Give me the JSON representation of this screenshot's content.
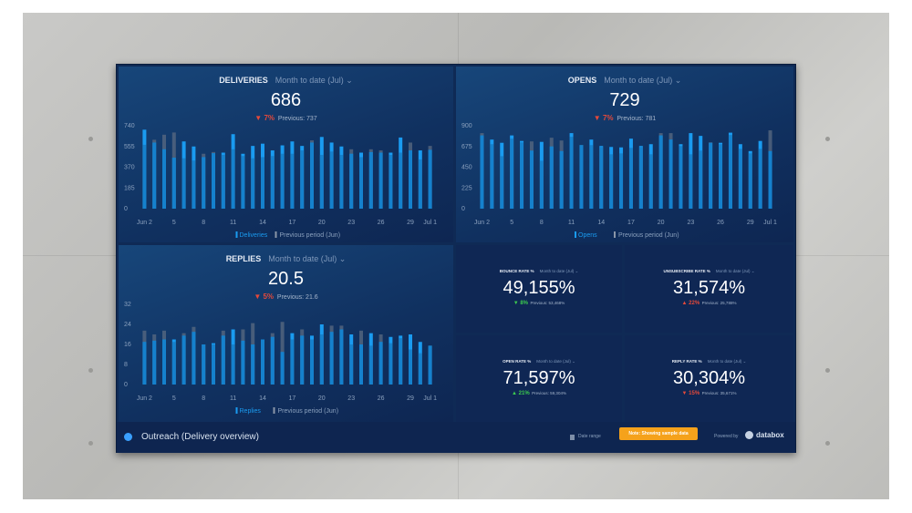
{
  "colors": {
    "current": "#1a9bf0",
    "previous": "#5b6b82",
    "down_bad": "#e5493a",
    "up_good": "#3ccb4f"
  },
  "x_labels": [
    "Jun 2",
    "5",
    "8",
    "11",
    "14",
    "17",
    "20",
    "23",
    "26",
    "29",
    "Jul 1"
  ],
  "panels": {
    "deliveries": {
      "title": "DELIVERIES",
      "range": "Month to date (Jul)",
      "value": "686",
      "delta_icon": "triangle-down",
      "delta": "7%",
      "previous": "Previous: 737",
      "legend_current": "Deliveries",
      "legend_previous": "Previous period (Jun)"
    },
    "opens": {
      "title": "OPENS",
      "range": "Month to date (Jul)",
      "value": "729",
      "delta_icon": "triangle-down",
      "delta": "7%",
      "previous": "Previous: 781",
      "legend_current": "Opens",
      "legend_previous": "Previous period (Jun)"
    },
    "replies": {
      "title": "REPLIES",
      "range": "Month to date (Jul)",
      "value": "20.5",
      "delta_icon": "triangle-down",
      "delta": "5%",
      "previous": "Previous: 21.6",
      "legend_current": "Replies",
      "legend_previous": "Previous period (Jun)"
    }
  },
  "tiles": {
    "bounce": {
      "title": "BOUNCE RATE %",
      "range": "Month to date (Jul)",
      "value": "49,155%",
      "delta_icon": "triangle-down",
      "delta": "8%",
      "previous": "Previous: 53,468%",
      "delta_color": "green"
    },
    "unsubscribe": {
      "title": "UNSUBSCRIBE RATE %",
      "range": "Month to date (Jul)",
      "value": "31,574%",
      "delta_icon": "triangle-up",
      "delta": "22%",
      "previous": "Previous: 25,788%",
      "delta_color": "red"
    },
    "open": {
      "title": "OPEN RATE %",
      "range": "Month to date (Jul)",
      "value": "71,597%",
      "delta_icon": "triangle-up",
      "delta": "21%",
      "previous": "Previous: 59,304%",
      "delta_color": "green"
    },
    "reply": {
      "title": "REPLY RATE %",
      "range": "Month to date (Jul)",
      "value": "30,304%",
      "delta_icon": "triangle-down",
      "delta": "15%",
      "previous": "Previous: 35,671%",
      "delta_color": "red"
    }
  },
  "footer": {
    "dashboard_name": "Outreach (Delivery overview)",
    "date_range": "Date range",
    "note": "Note: Showing sample data",
    "powered_by": "Powered by",
    "brand": "databox"
  },
  "chart_data": [
    {
      "type": "bar",
      "name_key": "deliveries",
      "ylim": [
        0,
        740
      ],
      "yticks": [
        0,
        185,
        370,
        555,
        740
      ],
      "series": [
        {
          "name": "Deliveries",
          "values": [
            705,
            590,
            530,
            455,
            600,
            555,
            460,
            495,
            500,
            665,
            490,
            560,
            580,
            520,
            565,
            600,
            560,
            590,
            640,
            590,
            555,
            490,
            500,
            505,
            500,
            500,
            635,
            520,
            520,
            525
          ]
        },
        {
          "name": "Previous period (Jun)",
          "values": [
            570,
            615,
            660,
            680,
            450,
            430,
            490,
            505,
            480,
            530,
            470,
            450,
            460,
            470,
            490,
            490,
            520,
            610,
            480,
            510,
            480,
            530,
            460,
            530,
            520,
            480,
            500,
            590,
            440,
            560
          ]
        }
      ]
    },
    {
      "type": "bar",
      "name_key": "opens",
      "ylim": [
        0,
        900
      ],
      "yticks": [
        0,
        225,
        450,
        675,
        900
      ],
      "series": [
        {
          "name": "Opens",
          "values": [
            795,
            750,
            715,
            795,
            735,
            630,
            725,
            675,
            625,
            820,
            690,
            750,
            680,
            670,
            665,
            760,
            680,
            700,
            795,
            750,
            700,
            820,
            790,
            715,
            715,
            825,
            700,
            625,
            735,
            625
          ]
        },
        {
          "name": "Previous period (Jun)",
          "values": [
            820,
            700,
            570,
            760,
            720,
            730,
            520,
            770,
            740,
            780,
            690,
            690,
            670,
            590,
            600,
            660,
            670,
            590,
            820,
            820,
            680,
            590,
            630,
            720,
            700,
            800,
            650,
            600,
            650,
            850
          ]
        }
      ]
    },
    {
      "type": "bar",
      "name_key": "replies",
      "ylim": [
        0,
        32
      ],
      "yticks": [
        0,
        8,
        16,
        24,
        32
      ],
      "series": [
        {
          "name": "Replies",
          "values": [
            17,
            17.5,
            18,
            18,
            19.5,
            21,
            16,
            16.5,
            19.5,
            22,
            17.5,
            16,
            18,
            19,
            13,
            20.5,
            19.5,
            19.5,
            24,
            21,
            22,
            20,
            16,
            20.5,
            17,
            19,
            19.5,
            20,
            17,
            15.5
          ]
        },
        {
          "name": "Previous period (Jun)",
          "values": [
            21.5,
            20,
            21.5,
            17,
            20.5,
            23,
            16,
            16,
            21.5,
            16,
            22,
            24.5,
            18,
            20.5,
            25,
            18,
            22,
            18,
            20,
            23.5,
            23.5,
            16,
            21.5,
            15.5,
            20,
            16.5,
            18.5,
            14,
            12.5,
            15.5
          ]
        }
      ]
    }
  ]
}
